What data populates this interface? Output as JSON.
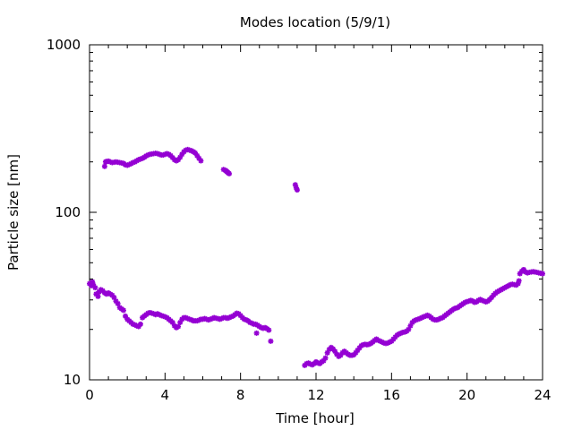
{
  "chart_data": {
    "type": "scatter",
    "title": "Modes location (5/9/1)",
    "xlabel": "Time [hour]",
    "ylabel": "Particle size [nm]",
    "xlim": [
      0,
      24
    ],
    "ylim": [
      10,
      1000
    ],
    "yscale": "log",
    "xticks": [
      0,
      4,
      8,
      12,
      16,
      20,
      24
    ],
    "xtick_labels": [
      "0",
      "4",
      "8",
      "12",
      "16",
      "20",
      "24"
    ],
    "yticks": [
      10,
      100,
      1000
    ],
    "ytick_labels": [
      "10",
      "100",
      "1000"
    ],
    "grid": false,
    "legend": "none",
    "marker_color": "#9400d3",
    "series": [
      {
        "points": [
          [
            0.0,
            37.5
          ],
          [
            0.1,
            36.5
          ],
          [
            0.15,
            38.5
          ],
          [
            0.2,
            37.0
          ],
          [
            0.3,
            35.5
          ],
          [
            0.35,
            32.5
          ],
          [
            0.45,
            31.5
          ],
          [
            0.5,
            33.5
          ],
          [
            0.6,
            34.5
          ],
          [
            0.7,
            34.0
          ],
          [
            0.8,
            33.0
          ],
          [
            0.9,
            32.5
          ],
          [
            1.0,
            33.0
          ],
          [
            1.1,
            32.5
          ],
          [
            1.2,
            32.0
          ],
          [
            1.3,
            31.0
          ],
          [
            1.4,
            29.5
          ],
          [
            1.5,
            28.5
          ],
          [
            1.6,
            27.0
          ],
          [
            1.7,
            26.5
          ],
          [
            1.8,
            26.0
          ],
          [
            1.9,
            24.0
          ],
          [
            2.0,
            23.0
          ],
          [
            2.1,
            22.5
          ],
          [
            2.2,
            22.0
          ],
          [
            2.3,
            21.5
          ],
          [
            2.4,
            21.3
          ],
          [
            2.5,
            21.0
          ],
          [
            2.6,
            20.8
          ],
          [
            2.7,
            21.5
          ],
          [
            2.8,
            23.5
          ],
          [
            2.9,
            24.0
          ],
          [
            3.0,
            24.5
          ],
          [
            3.1,
            25.0
          ],
          [
            3.2,
            25.2
          ],
          [
            3.3,
            25.0
          ],
          [
            3.4,
            24.8
          ],
          [
            3.5,
            24.5
          ],
          [
            3.6,
            24.8
          ],
          [
            3.7,
            24.5
          ],
          [
            3.8,
            24.2
          ],
          [
            3.9,
            24.0
          ],
          [
            4.0,
            23.8
          ],
          [
            4.1,
            23.5
          ],
          [
            4.2,
            23.0
          ],
          [
            4.3,
            22.5
          ],
          [
            4.4,
            22.0
          ],
          [
            4.5,
            21.0
          ],
          [
            4.6,
            20.5
          ],
          [
            4.7,
            20.8
          ],
          [
            4.8,
            22.0
          ],
          [
            4.9,
            23.0
          ],
          [
            5.0,
            23.5
          ],
          [
            5.1,
            23.5
          ],
          [
            5.2,
            23.2
          ],
          [
            5.3,
            23.0
          ],
          [
            5.4,
            22.8
          ],
          [
            5.5,
            22.5
          ],
          [
            5.6,
            22.5
          ],
          [
            5.7,
            22.5
          ],
          [
            5.8,
            22.7
          ],
          [
            5.9,
            23.0
          ],
          [
            6.0,
            23.0
          ],
          [
            6.1,
            23.2
          ],
          [
            6.2,
            23.0
          ],
          [
            6.3,
            22.8
          ],
          [
            6.4,
            23.0
          ],
          [
            6.5,
            23.2
          ],
          [
            6.6,
            23.5
          ],
          [
            6.7,
            23.3
          ],
          [
            6.8,
            23.2
          ],
          [
            6.9,
            23.0
          ],
          [
            7.0,
            23.2
          ],
          [
            7.1,
            23.5
          ],
          [
            7.2,
            23.5
          ],
          [
            7.3,
            23.3
          ],
          [
            7.4,
            23.5
          ],
          [
            7.5,
            23.8
          ],
          [
            7.6,
            24.0
          ],
          [
            7.7,
            24.5
          ],
          [
            7.8,
            25.0
          ],
          [
            7.9,
            24.8
          ],
          [
            8.0,
            24.2
          ],
          [
            8.1,
            23.5
          ],
          [
            8.2,
            23.0
          ],
          [
            8.3,
            22.8
          ],
          [
            8.4,
            22.5
          ],
          [
            8.5,
            22.0
          ],
          [
            8.6,
            21.8
          ],
          [
            8.7,
            21.5
          ],
          [
            8.8,
            21.5
          ],
          [
            8.85,
            19.0
          ],
          [
            8.9,
            21.2
          ],
          [
            9.0,
            20.8
          ],
          [
            9.1,
            20.5
          ],
          [
            9.2,
            20.3
          ],
          [
            9.3,
            20.5
          ],
          [
            9.4,
            20.2
          ],
          [
            9.5,
            19.8
          ],
          [
            9.6,
            17.0
          ],
          [
            11.4,
            12.2
          ],
          [
            11.5,
            12.5
          ],
          [
            11.6,
            12.6
          ],
          [
            11.7,
            12.4
          ],
          [
            11.8,
            12.3
          ],
          [
            11.9,
            12.5
          ],
          [
            12.0,
            12.8
          ],
          [
            12.1,
            12.6
          ],
          [
            12.2,
            12.5
          ],
          [
            12.3,
            12.8
          ],
          [
            12.4,
            13.0
          ],
          [
            12.5,
            13.5
          ],
          [
            12.6,
            14.5
          ],
          [
            12.7,
            15.2
          ],
          [
            12.8,
            15.6
          ],
          [
            12.9,
            15.3
          ],
          [
            13.0,
            14.8
          ],
          [
            13.1,
            14.2
          ],
          [
            13.2,
            13.8
          ],
          [
            13.3,
            14.0
          ],
          [
            13.4,
            14.5
          ],
          [
            13.5,
            14.8
          ],
          [
            13.6,
            14.5
          ],
          [
            13.7,
            14.2
          ],
          [
            13.8,
            14.0
          ],
          [
            13.9,
            14.0
          ],
          [
            14.0,
            14.1
          ],
          [
            14.1,
            14.5
          ],
          [
            14.2,
            15.0
          ],
          [
            14.3,
            15.5
          ],
          [
            14.4,
            16.0
          ],
          [
            14.5,
            16.2
          ],
          [
            14.6,
            16.3
          ],
          [
            14.7,
            16.2
          ],
          [
            14.8,
            16.3
          ],
          [
            14.9,
            16.5
          ],
          [
            15.0,
            16.8
          ],
          [
            15.1,
            17.2
          ],
          [
            15.2,
            17.5
          ],
          [
            15.3,
            17.2
          ],
          [
            15.4,
            17.0
          ],
          [
            15.5,
            16.8
          ],
          [
            15.6,
            16.6
          ],
          [
            15.7,
            16.5
          ],
          [
            15.8,
            16.6
          ],
          [
            15.9,
            16.8
          ],
          [
            16.0,
            17.0
          ],
          [
            16.1,
            17.5
          ],
          [
            16.2,
            18.0
          ],
          [
            16.3,
            18.5
          ],
          [
            16.4,
            18.8
          ],
          [
            16.5,
            19.0
          ],
          [
            16.6,
            19.2
          ],
          [
            16.7,
            19.3
          ],
          [
            16.8,
            19.5
          ],
          [
            16.9,
            20.0
          ],
          [
            17.0,
            21.0
          ],
          [
            17.1,
            22.0
          ],
          [
            17.2,
            22.5
          ],
          [
            17.3,
            22.8
          ],
          [
            17.4,
            23.0
          ],
          [
            17.5,
            23.2
          ],
          [
            17.6,
            23.5
          ],
          [
            17.7,
            23.8
          ],
          [
            17.8,
            24.0
          ],
          [
            17.9,
            24.3
          ],
          [
            18.0,
            24.0
          ],
          [
            18.1,
            23.5
          ],
          [
            18.2,
            23.0
          ],
          [
            18.3,
            22.8
          ],
          [
            18.4,
            22.8
          ],
          [
            18.5,
            23.0
          ],
          [
            18.6,
            23.3
          ],
          [
            18.7,
            23.5
          ],
          [
            18.8,
            24.0
          ],
          [
            18.9,
            24.5
          ],
          [
            19.0,
            25.0
          ],
          [
            19.1,
            25.5
          ],
          [
            19.2,
            26.0
          ],
          [
            19.3,
            26.5
          ],
          [
            19.4,
            26.8
          ],
          [
            19.5,
            27.0
          ],
          [
            19.6,
            27.5
          ],
          [
            19.7,
            28.0
          ],
          [
            19.8,
            28.5
          ],
          [
            19.9,
            29.0
          ],
          [
            20.0,
            29.3
          ],
          [
            20.1,
            29.5
          ],
          [
            20.2,
            29.8
          ],
          [
            20.3,
            29.5
          ],
          [
            20.4,
            29.0
          ],
          [
            20.5,
            29.2
          ],
          [
            20.6,
            29.8
          ],
          [
            20.7,
            30.2
          ],
          [
            20.8,
            29.8
          ],
          [
            20.9,
            29.5
          ],
          [
            21.0,
            29.2
          ],
          [
            21.1,
            29.5
          ],
          [
            21.2,
            30.2
          ],
          [
            21.3,
            31.0
          ],
          [
            21.4,
            32.0
          ],
          [
            21.5,
            32.8
          ],
          [
            21.6,
            33.5
          ],
          [
            21.7,
            34.0
          ],
          [
            21.8,
            34.5
          ],
          [
            21.9,
            35.0
          ],
          [
            22.0,
            35.5
          ],
          [
            22.1,
            36.0
          ],
          [
            22.2,
            36.5
          ],
          [
            22.3,
            37.0
          ],
          [
            22.4,
            37.2
          ],
          [
            22.5,
            37.0
          ],
          [
            22.6,
            36.8
          ],
          [
            22.7,
            37.5
          ],
          [
            22.75,
            39.0
          ],
          [
            22.8,
            43.0
          ],
          [
            22.9,
            44.5
          ],
          [
            23.0,
            45.5
          ],
          [
            23.1,
            44.0
          ],
          [
            23.2,
            43.5
          ],
          [
            23.3,
            43.8
          ],
          [
            23.4,
            44.0
          ],
          [
            23.5,
            44.2
          ],
          [
            23.6,
            44.0
          ],
          [
            23.7,
            43.8
          ],
          [
            23.8,
            43.5
          ],
          [
            23.9,
            43.3
          ],
          [
            24.0,
            43.0
          ]
        ]
      },
      {
        "points": [
          [
            0.8,
            188
          ],
          [
            0.85,
            200
          ],
          [
            0.9,
            201
          ],
          [
            1.0,
            202
          ],
          [
            1.1,
            200
          ],
          [
            1.2,
            198
          ],
          [
            1.3,
            199
          ],
          [
            1.4,
            200
          ],
          [
            1.5,
            199
          ],
          [
            1.6,
            198
          ],
          [
            1.7,
            197
          ],
          [
            1.8,
            196
          ],
          [
            1.9,
            192
          ],
          [
            2.0,
            191
          ],
          [
            2.1,
            193
          ],
          [
            2.2,
            195
          ],
          [
            2.3,
            198
          ],
          [
            2.4,
            200
          ],
          [
            2.5,
            203
          ],
          [
            2.6,
            206
          ],
          [
            2.7,
            208
          ],
          [
            2.8,
            210
          ],
          [
            2.9,
            213
          ],
          [
            3.0,
            217
          ],
          [
            3.1,
            220
          ],
          [
            3.2,
            222
          ],
          [
            3.3,
            223
          ],
          [
            3.4,
            224
          ],
          [
            3.5,
            225
          ],
          [
            3.6,
            224
          ],
          [
            3.7,
            222
          ],
          [
            3.8,
            220
          ],
          [
            3.9,
            220
          ],
          [
            4.0,
            222
          ],
          [
            4.1,
            224
          ],
          [
            4.2,
            222
          ],
          [
            4.3,
            218
          ],
          [
            4.4,
            212
          ],
          [
            4.5,
            206
          ],
          [
            4.6,
            203
          ],
          [
            4.7,
            206
          ],
          [
            4.8,
            213
          ],
          [
            4.9,
            222
          ],
          [
            5.0,
            230
          ],
          [
            5.1,
            235
          ],
          [
            5.2,
            237
          ],
          [
            5.3,
            235
          ],
          [
            5.4,
            233
          ],
          [
            5.5,
            230
          ],
          [
            5.6,
            226
          ],
          [
            5.7,
            218
          ],
          [
            5.8,
            210
          ],
          [
            5.9,
            203
          ],
          [
            7.1,
            180
          ],
          [
            7.2,
            178
          ],
          [
            7.25,
            176
          ],
          [
            7.3,
            174
          ],
          [
            7.35,
            172
          ],
          [
            7.4,
            170
          ],
          [
            10.9,
            146
          ],
          [
            10.95,
            140
          ],
          [
            11.0,
            136
          ]
        ]
      }
    ]
  }
}
